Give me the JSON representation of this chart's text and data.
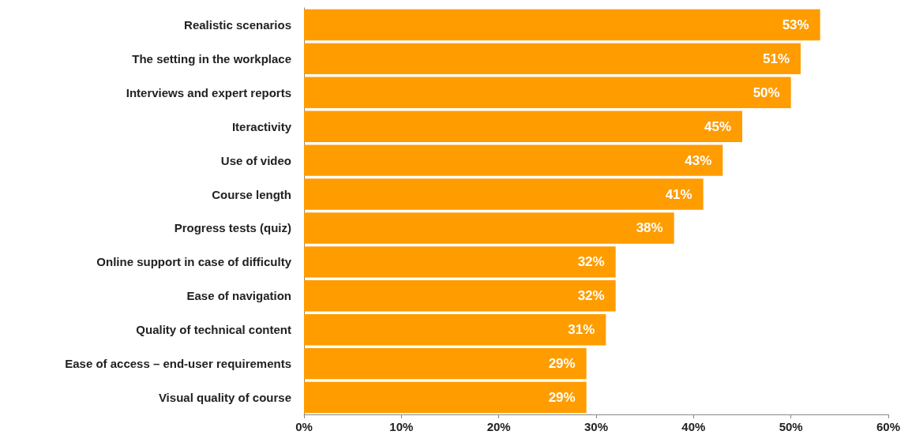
{
  "chart_data": {
    "type": "bar",
    "orientation": "horizontal",
    "categories": [
      "Realistic scenarios",
      "The setting in the workplace",
      "Interviews and expert reports",
      "Iteractivity",
      "Use of video",
      "Course length",
      "Progress tests (quiz)",
      "Online support in case of difficulty",
      "Ease of navigation",
      "Quality of technical content",
      "Ease of access – end-user requirements",
      "Visual quality of course"
    ],
    "values": [
      53,
      51,
      50,
      45,
      43,
      41,
      38,
      32,
      32,
      31,
      29,
      29
    ],
    "value_labels": [
      "53%",
      "51%",
      "50%",
      "45%",
      "43%",
      "41%",
      "38%",
      "32%",
      "32%",
      "31%",
      "29%",
      "29%"
    ],
    "color": "#ff9c00",
    "xlim": [
      0,
      60
    ],
    "xticks": [
      {
        "value": 0,
        "label": "0%"
      },
      {
        "value": 10,
        "label": "10%"
      },
      {
        "value": 20,
        "label": "20%"
      },
      {
        "value": 30,
        "label": "30%"
      },
      {
        "value": 40,
        "label": "40%"
      },
      {
        "value": 50,
        "label": "50%"
      },
      {
        "value": 60,
        "label": "60%"
      }
    ],
    "grid": false
  }
}
